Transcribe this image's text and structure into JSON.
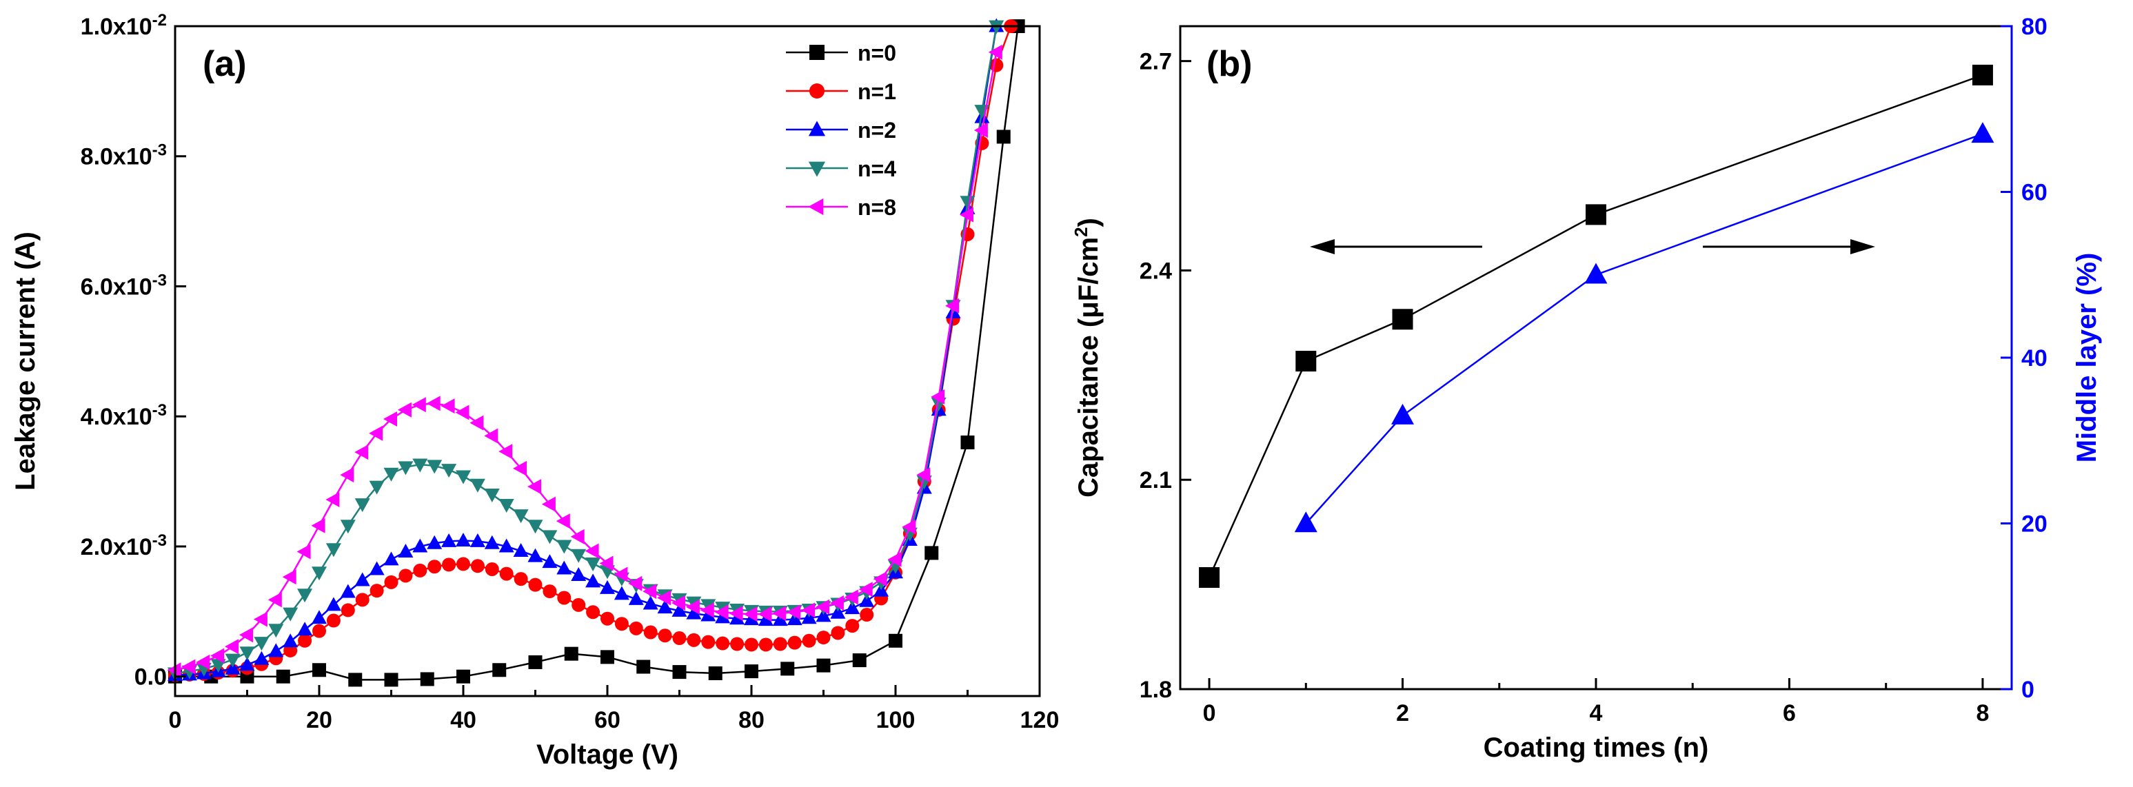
{
  "chart_data": [
    {
      "panel": "(a)",
      "type": "line",
      "xlabel": "Voltage (V)",
      "ylabel": "Leakage current (A)",
      "xlim": [
        0,
        120
      ],
      "ylim": [
        -0.0003,
        0.01
      ],
      "x_ticks": [
        0,
        20,
        40,
        60,
        80,
        100,
        120
      ],
      "y_ticks": [
        {
          "value": 0.0,
          "mantissa": "0.0",
          "exp": "",
          "base": ""
        },
        {
          "value": 0.002,
          "mantissa": "2.0x10",
          "exp": "-3",
          "base": ""
        },
        {
          "value": 0.004,
          "mantissa": "4.0x10",
          "exp": "-3",
          "base": ""
        },
        {
          "value": 0.006,
          "mantissa": "6.0x10",
          "exp": "-3",
          "base": ""
        },
        {
          "value": 0.008,
          "mantissa": "8.0x10",
          "exp": "-3",
          "base": ""
        },
        {
          "value": 0.01,
          "mantissa": "1.0x10",
          "exp": "-2",
          "base": ""
        }
      ],
      "legend_position": "top-right",
      "series": [
        {
          "name": "n=0",
          "color": "#000000",
          "marker": "square",
          "x": [
            0,
            5,
            10,
            15,
            20,
            25,
            30,
            35,
            40,
            45,
            50,
            55,
            60,
            65,
            70,
            75,
            80,
            85,
            90,
            95,
            100,
            105,
            110,
            115,
            117
          ],
          "y": [
            0,
            0,
            0,
            0,
            0.0001,
            -5e-05,
            -5e-05,
            -4e-05,
            0,
            0.0001,
            0.00022,
            0.00035,
            0.0003,
            0.00015,
            7e-05,
            5e-05,
            8e-05,
            0.00012,
            0.00017,
            0.00025,
            0.00055,
            0.0019,
            0.0036,
            0.0083,
            0.01
          ]
        },
        {
          "name": "n=1",
          "color": "#ff0000",
          "marker": "circle",
          "x": [
            0,
            2,
            4,
            6,
            8,
            10,
            12,
            14,
            16,
            18,
            20,
            22,
            24,
            26,
            28,
            30,
            32,
            34,
            36,
            38,
            40,
            42,
            44,
            46,
            48,
            50,
            52,
            54,
            56,
            58,
            60,
            62,
            64,
            66,
            68,
            70,
            72,
            74,
            76,
            78,
            80,
            82,
            84,
            86,
            88,
            90,
            92,
            94,
            96,
            98,
            100,
            102,
            104,
            106,
            108,
            110,
            112,
            114,
            116
          ],
          "y": [
            2e-05,
            3e-05,
            4e-05,
            6e-05,
            9e-05,
            0.00013,
            0.00019,
            0.00028,
            0.0004,
            0.00055,
            0.0007,
            0.00086,
            0.00102,
            0.00118,
            0.00132,
            0.00145,
            0.00155,
            0.00163,
            0.00169,
            0.00172,
            0.00173,
            0.0017,
            0.00165,
            0.00158,
            0.0015,
            0.00141,
            0.00131,
            0.00121,
            0.0011,
            0.00099,
            0.00089,
            0.00081,
            0.00074,
            0.00068,
            0.00063,
            0.00059,
            0.00056,
            0.00053,
            0.00051,
            0.0005,
            0.00049,
            0.00049,
            0.0005,
            0.00052,
            0.00055,
            0.0006,
            0.00067,
            0.00078,
            0.00095,
            0.0012,
            0.0016,
            0.0022,
            0.003,
            0.0041,
            0.0055,
            0.0068,
            0.0082,
            0.0094,
            0.01
          ]
        },
        {
          "name": "n=2",
          "color": "#0000ff",
          "marker": "triangle-up",
          "x": [
            0,
            2,
            4,
            6,
            8,
            10,
            12,
            14,
            16,
            18,
            20,
            22,
            24,
            26,
            28,
            30,
            32,
            34,
            36,
            38,
            40,
            42,
            44,
            46,
            48,
            50,
            52,
            54,
            56,
            58,
            60,
            62,
            64,
            66,
            68,
            70,
            72,
            74,
            76,
            78,
            80,
            82,
            84,
            86,
            88,
            90,
            92,
            94,
            96,
            98,
            100,
            102,
            104,
            106,
            108,
            110,
            112,
            114
          ],
          "y": [
            2e-05,
            3e-05,
            5e-05,
            8e-05,
            0.00012,
            0.00018,
            0.00027,
            0.00039,
            0.00054,
            0.00072,
            0.0009,
            0.0011,
            0.0013,
            0.00148,
            0.00165,
            0.0018,
            0.00192,
            0.002,
            0.00205,
            0.00208,
            0.00209,
            0.00208,
            0.00205,
            0.002,
            0.00193,
            0.00185,
            0.00176,
            0.00166,
            0.00156,
            0.00146,
            0.00136,
            0.00127,
            0.00119,
            0.00112,
            0.00106,
            0.00101,
            0.00097,
            0.00094,
            0.00091,
            0.00089,
            0.00088,
            0.00087,
            0.00087,
            0.00088,
            0.0009,
            0.00093,
            0.00098,
            0.00105,
            0.00116,
            0.00132,
            0.0016,
            0.0021,
            0.0029,
            0.0041,
            0.0056,
            0.0072,
            0.0086,
            0.01
          ]
        },
        {
          "name": "n=4",
          "color": "#20807a",
          "marker": "triangle-down",
          "x": [
            0,
            2,
            4,
            6,
            8,
            10,
            12,
            14,
            16,
            18,
            20,
            22,
            24,
            26,
            28,
            30,
            32,
            34,
            36,
            38,
            40,
            42,
            44,
            46,
            48,
            50,
            52,
            54,
            56,
            58,
            60,
            62,
            64,
            66,
            68,
            70,
            72,
            74,
            76,
            78,
            80,
            82,
            84,
            86,
            88,
            90,
            92,
            94,
            96,
            98,
            100,
            102,
            104,
            106,
            108,
            110,
            112,
            114
          ],
          "y": [
            5e-05,
            8e-05,
            0.00012,
            0.00018,
            0.00026,
            0.00037,
            0.00052,
            0.00072,
            0.00097,
            0.00126,
            0.0016,
            0.00196,
            0.00232,
            0.00265,
            0.00292,
            0.00312,
            0.00322,
            0.00326,
            0.00324,
            0.00318,
            0.00308,
            0.00295,
            0.0028,
            0.00264,
            0.00248,
            0.00232,
            0.00216,
            0.00201,
            0.00187,
            0.00174,
            0.00162,
            0.00151,
            0.00141,
            0.00133,
            0.00125,
            0.00119,
            0.00114,
            0.0011,
            0.00106,
            0.00103,
            0.00101,
            0.001,
            0.001,
            0.00101,
            0.00103,
            0.00107,
            0.00112,
            0.0012,
            0.0013,
            0.00145,
            0.0017,
            0.0022,
            0.003,
            0.0042,
            0.0057,
            0.0073,
            0.0087,
            0.01
          ]
        },
        {
          "name": "n=8",
          "color": "#ff00ff",
          "marker": "triangle-left",
          "x": [
            0,
            2,
            4,
            6,
            8,
            10,
            12,
            14,
            16,
            18,
            20,
            22,
            24,
            26,
            28,
            30,
            32,
            34,
            36,
            38,
            40,
            42,
            44,
            46,
            48,
            50,
            52,
            54,
            56,
            58,
            60,
            62,
            64,
            66,
            68,
            70,
            72,
            74,
            76,
            78,
            80,
            82,
            84,
            86,
            88,
            90,
            92,
            94,
            96,
            98,
            100,
            102,
            104,
            106,
            108,
            110,
            112,
            114
          ],
          "y": [
            0.0001,
            0.00015,
            0.00022,
            0.00032,
            0.00046,
            0.00064,
            0.00088,
            0.00118,
            0.00153,
            0.00192,
            0.00232,
            0.00272,
            0.0031,
            0.00345,
            0.00374,
            0.00396,
            0.0041,
            0.00418,
            0.0042,
            0.00416,
            0.00406,
            0.0039,
            0.0037,
            0.00346,
            0.0032,
            0.00292,
            0.00265,
            0.00239,
            0.00215,
            0.00193,
            0.00174,
            0.00157,
            0.00143,
            0.00131,
            0.00121,
            0.00113,
            0.00107,
            0.00102,
            0.00099,
            0.00097,
            0.00096,
            0.00096,
            0.00097,
            0.00099,
            0.00102,
            0.00107,
            0.00113,
            0.00122,
            0.00134,
            0.0015,
            0.0018,
            0.0023,
            0.0031,
            0.0043,
            0.0057,
            0.0071,
            0.0084,
            0.0096
          ]
        }
      ]
    },
    {
      "panel": "(b)",
      "type": "line",
      "xlabel": "Coating times (n)",
      "ylabel_prefix": "Capacitance (",
      "ylabel_unit": "μF/cm",
      "ylabel_sup": "2",
      "ylabel_suffix": ")",
      "y2label": "Middle layer (%)",
      "xlim": [
        -0.3,
        8.3
      ],
      "ylim": [
        1.8,
        2.75
      ],
      "y2lim": [
        0,
        80
      ],
      "x_ticks": [
        0,
        2,
        4,
        6,
        8
      ],
      "y_ticks": [
        "1.8",
        "2.1",
        "2.4",
        "2.7"
      ],
      "y2_ticks": [
        "0",
        "20",
        "40",
        "60",
        "80"
      ],
      "colors": {
        "left": "#000000",
        "right": "#0000ff"
      },
      "series": [
        {
          "name": "",
          "axis": "left",
          "color": "#000000",
          "marker": "square",
          "x": [
            0,
            1,
            2,
            4,
            8
          ],
          "y": [
            1.96,
            2.27,
            2.33,
            2.48,
            2.68
          ]
        },
        {
          "name": "",
          "axis": "right",
          "color": "#0000ff",
          "marker": "triangle-up",
          "x": [
            1,
            2,
            4,
            8
          ],
          "y": [
            20,
            33,
            50,
            67
          ]
        }
      ],
      "annotations": [
        {
          "type": "arrow",
          "direction": "left",
          "meaning": "capacitance axis"
        },
        {
          "type": "arrow",
          "direction": "right",
          "meaning": "middle layer axis"
        }
      ]
    }
  ]
}
